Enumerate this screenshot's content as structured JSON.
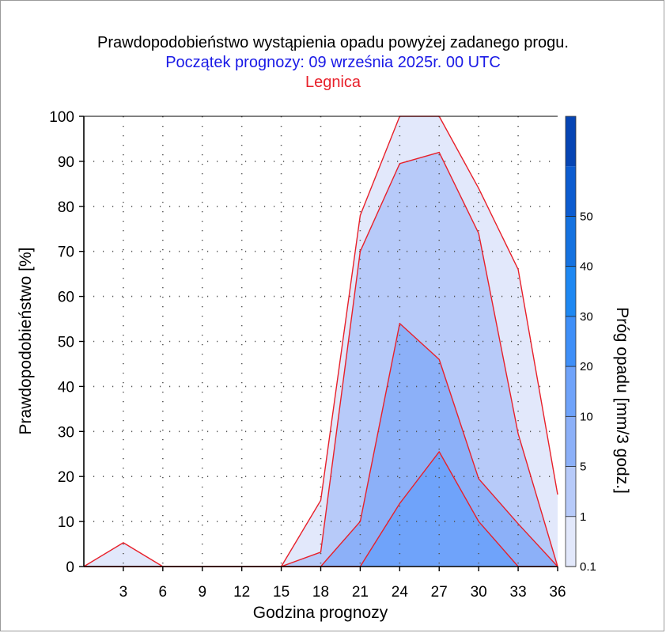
{
  "chart_data": {
    "type": "area",
    "title": "Prawdopodobieństwo wystąpienia opadu powyżej zadanego progu.",
    "subtitle": "Początek prognozy: 09 września 2025r. 00 UTC",
    "location": "Legnica",
    "xlabel": "Godzina prognozy",
    "ylabel": "Prawdopodobieństwo [%]",
    "xlim": [
      0,
      36
    ],
    "ylim": [
      0,
      100
    ],
    "xticks": [
      3,
      6,
      9,
      12,
      15,
      18,
      21,
      24,
      27,
      30,
      33,
      36
    ],
    "yticks": [
      0,
      10,
      20,
      30,
      40,
      50,
      60,
      70,
      80,
      90,
      100
    ],
    "grid": true,
    "x": [
      0,
      3,
      6,
      9,
      12,
      15,
      18,
      21,
      24,
      27,
      30,
      33,
      36
    ],
    "series": [
      {
        "threshold": 0.1,
        "color": "#e2e8fb",
        "values": [
          0,
          5.3,
          0,
          0,
          0,
          0,
          14.7,
          78,
          100,
          100,
          84,
          66,
          16
        ]
      },
      {
        "threshold": 1,
        "color": "#b7caf9",
        "values": [
          0,
          0,
          0,
          0,
          0,
          0,
          3.2,
          70,
          89.5,
          92,
          74,
          29.5,
          0
        ]
      },
      {
        "threshold": 5,
        "color": "#8cb0f8",
        "values": [
          0,
          0,
          0,
          0,
          0,
          0,
          0,
          10,
          54,
          46,
          19.5,
          9.5,
          0
        ]
      },
      {
        "threshold": 10,
        "color": "#6fa3fa",
        "values": [
          0,
          0,
          0,
          0,
          0,
          0,
          0,
          0,
          14,
          25.5,
          10,
          0,
          0
        ]
      }
    ],
    "line_color": "#e8202a",
    "colorbar": {
      "label": "Próg opadu [mm/3 godz.]",
      "ticks": [
        "0.1",
        "1",
        "5",
        "10",
        "20",
        "30",
        "40",
        "50"
      ],
      "colors": [
        "#e2e8fb",
        "#b7caf9",
        "#8cb0f8",
        "#6fa3fa",
        "#3f8ff8",
        "#1e88f2",
        "#1572e0",
        "#0c5cd0",
        "#0645b4"
      ]
    }
  }
}
